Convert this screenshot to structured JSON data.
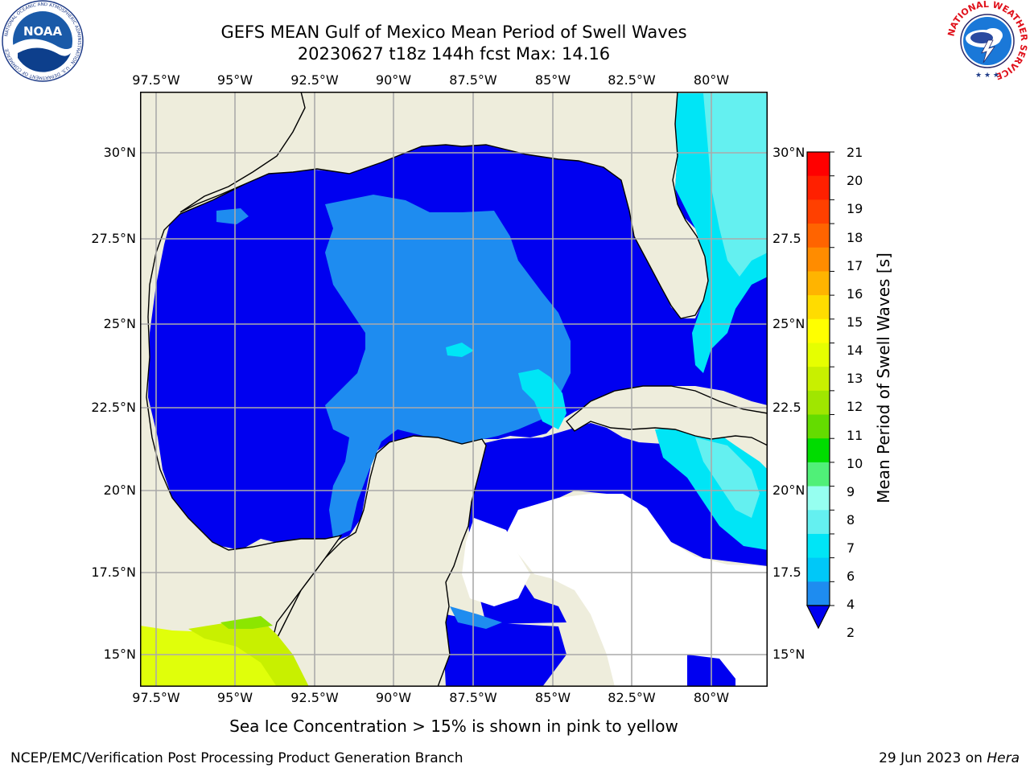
{
  "title": {
    "line1": "GEFS MEAN Gulf of Mexico Mean Period of Swell Waves",
    "line2": "20230627 t18z 144h fcst   Max: 14.16"
  },
  "logos": {
    "noaa": {
      "label": "NOAA",
      "ring_text": "NATIONAL OCEANIC AND ATMOSPHERIC ADMINISTRATION · U.S. DEPARTMENT OF COMMERCE"
    },
    "nws": {
      "ring_text": "NATIONAL WEATHER SERVICE"
    }
  },
  "map": {
    "lon_labels": [
      "97.5°W",
      "95°W",
      "92.5°W",
      "90°W",
      "87.5°W",
      "85°W",
      "82.5°W",
      "80°W"
    ],
    "lat_labels_left": [
      "30°N",
      "27.5°N",
      "25°N",
      "22.5°N",
      "20°N",
      "17.5°N",
      "15°N"
    ],
    "lat_labels_right": [
      "30°N",
      "27.5",
      "25°N",
      "22.5",
      "20°N",
      "17.5",
      "15°N"
    ],
    "colors": {
      "land": "#eeeddc",
      "ocean_2_4": "#0000f0",
      "ocean_4_6": "#1e8cf0",
      "ocean_6_8": "#00e5f6",
      "ocean_8_10": "#64f0f0",
      "pacific_light": "#e0ff0a",
      "pacific_mid": "#c8f000",
      "pacific_green": "#8ce600",
      "grid": "#aaaaaa"
    }
  },
  "colorbar": {
    "title": "Mean Period of Swell Waves [s]",
    "ticks": [
      "21",
      "20",
      "19",
      "18",
      "17",
      "16",
      "15",
      "14",
      "13",
      "12",
      "11",
      "10",
      "9",
      "8",
      "7",
      "6",
      "4",
      "2"
    ],
    "colors": [
      "#ff0000",
      "#ff2000",
      "#ff4000",
      "#ff6400",
      "#ff8c00",
      "#ffb400",
      "#ffdc00",
      "#ffff00",
      "#e6ff00",
      "#c8f000",
      "#a0e600",
      "#64dc00",
      "#00dc00",
      "#50f078",
      "#96fff0",
      "#64f0f0",
      "#00e5f6",
      "#00c8f8",
      "#1e8cf0"
    ],
    "extend_color": "#0000f0"
  },
  "note": "Sea Ice Concentration > 15% is shown in pink to yellow",
  "footer": {
    "left": "NCEP/EMC/Verification Post Processing Product Generation Branch",
    "right_date": "29 Jun 2023 on ",
    "right_host": "Hera"
  }
}
